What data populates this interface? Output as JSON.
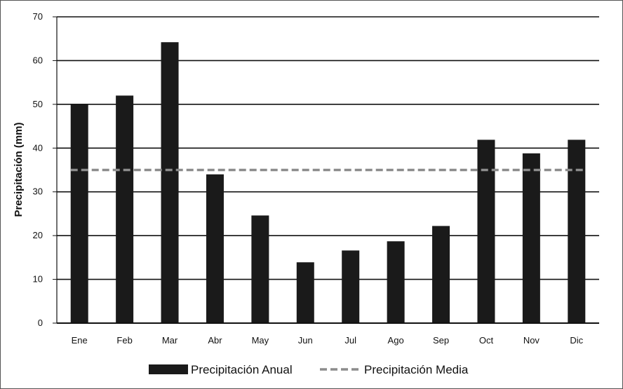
{
  "chart_data": {
    "type": "bar",
    "title": "",
    "xlabel": "",
    "ylabel": "Precipitación (mm)",
    "ylim": [
      0,
      70
    ],
    "yticks": [
      "0",
      "10",
      "20",
      "30",
      "40",
      "50",
      "60",
      "70"
    ],
    "categories": [
      "Ene",
      "Feb",
      "Mar",
      "Abr",
      "May",
      "Jun",
      "Jul",
      "Ago",
      "Sep",
      "Oct",
      "Nov",
      "Dic"
    ],
    "series": [
      {
        "name": "Precipitación Anual",
        "kind": "bar",
        "color": "#1a1a1a",
        "values": [
          50,
          52,
          64.2,
          34,
          24.6,
          13.9,
          16.6,
          18.7,
          22.2,
          41.9,
          38.8,
          41.9
        ]
      },
      {
        "name": "Precipitación Media",
        "kind": "dashed-line",
        "color": "#8c8c8c",
        "value": 35
      }
    ],
    "grid": true,
    "legend_position": "bottom-center"
  }
}
